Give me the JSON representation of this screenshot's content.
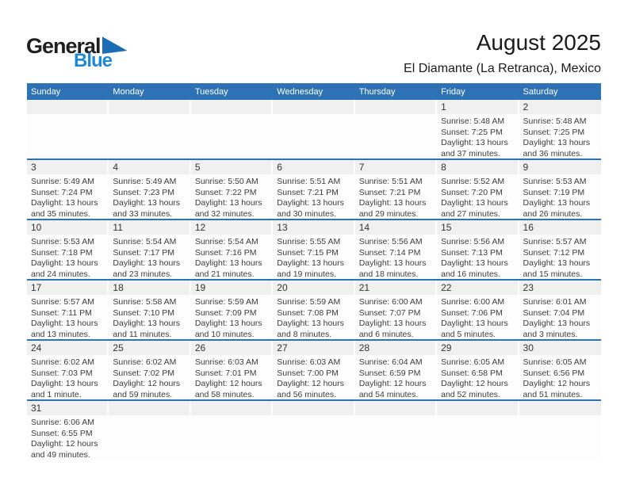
{
  "logo": {
    "line1": "General",
    "line2": "Blue"
  },
  "header": {
    "title": "August 2025",
    "subtitle": "El Diamante (La Retranca), Mexico"
  },
  "colors": {
    "header_bg": "#2d72b4",
    "row_divider": "#2e74b5",
    "day_strip_bg": "#f0f0f0",
    "logo_blue": "#1e8ad6",
    "logo_triangle": "#1b6db5"
  },
  "weekdays": [
    "Sunday",
    "Monday",
    "Tuesday",
    "Wednesday",
    "Thursday",
    "Friday",
    "Saturday"
  ],
  "weeks": [
    [
      null,
      null,
      null,
      null,
      null,
      {
        "day": "1",
        "sunrise": "Sunrise: 5:48 AM",
        "sunset": "Sunset: 7:25 PM",
        "daylight": "Daylight: 13 hours and 37 minutes."
      },
      {
        "day": "2",
        "sunrise": "Sunrise: 5:48 AM",
        "sunset": "Sunset: 7:25 PM",
        "daylight": "Daylight: 13 hours and 36 minutes."
      }
    ],
    [
      {
        "day": "3",
        "sunrise": "Sunrise: 5:49 AM",
        "sunset": "Sunset: 7:24 PM",
        "daylight": "Daylight: 13 hours and 35 minutes."
      },
      {
        "day": "4",
        "sunrise": "Sunrise: 5:49 AM",
        "sunset": "Sunset: 7:23 PM",
        "daylight": "Daylight: 13 hours and 33 minutes."
      },
      {
        "day": "5",
        "sunrise": "Sunrise: 5:50 AM",
        "sunset": "Sunset: 7:22 PM",
        "daylight": "Daylight: 13 hours and 32 minutes."
      },
      {
        "day": "6",
        "sunrise": "Sunrise: 5:51 AM",
        "sunset": "Sunset: 7:21 PM",
        "daylight": "Daylight: 13 hours and 30 minutes."
      },
      {
        "day": "7",
        "sunrise": "Sunrise: 5:51 AM",
        "sunset": "Sunset: 7:21 PM",
        "daylight": "Daylight: 13 hours and 29 minutes."
      },
      {
        "day": "8",
        "sunrise": "Sunrise: 5:52 AM",
        "sunset": "Sunset: 7:20 PM",
        "daylight": "Daylight: 13 hours and 27 minutes."
      },
      {
        "day": "9",
        "sunrise": "Sunrise: 5:53 AM",
        "sunset": "Sunset: 7:19 PM",
        "daylight": "Daylight: 13 hours and 26 minutes."
      }
    ],
    [
      {
        "day": "10",
        "sunrise": "Sunrise: 5:53 AM",
        "sunset": "Sunset: 7:18 PM",
        "daylight": "Daylight: 13 hours and 24 minutes."
      },
      {
        "day": "11",
        "sunrise": "Sunrise: 5:54 AM",
        "sunset": "Sunset: 7:17 PM",
        "daylight": "Daylight: 13 hours and 23 minutes."
      },
      {
        "day": "12",
        "sunrise": "Sunrise: 5:54 AM",
        "sunset": "Sunset: 7:16 PM",
        "daylight": "Daylight: 13 hours and 21 minutes."
      },
      {
        "day": "13",
        "sunrise": "Sunrise: 5:55 AM",
        "sunset": "Sunset: 7:15 PM",
        "daylight": "Daylight: 13 hours and 19 minutes."
      },
      {
        "day": "14",
        "sunrise": "Sunrise: 5:56 AM",
        "sunset": "Sunset: 7:14 PM",
        "daylight": "Daylight: 13 hours and 18 minutes."
      },
      {
        "day": "15",
        "sunrise": "Sunrise: 5:56 AM",
        "sunset": "Sunset: 7:13 PM",
        "daylight": "Daylight: 13 hours and 16 minutes."
      },
      {
        "day": "16",
        "sunrise": "Sunrise: 5:57 AM",
        "sunset": "Sunset: 7:12 PM",
        "daylight": "Daylight: 13 hours and 15 minutes."
      }
    ],
    [
      {
        "day": "17",
        "sunrise": "Sunrise: 5:57 AM",
        "sunset": "Sunset: 7:11 PM",
        "daylight": "Daylight: 13 hours and 13 minutes."
      },
      {
        "day": "18",
        "sunrise": "Sunrise: 5:58 AM",
        "sunset": "Sunset: 7:10 PM",
        "daylight": "Daylight: 13 hours and 11 minutes."
      },
      {
        "day": "19",
        "sunrise": "Sunrise: 5:59 AM",
        "sunset": "Sunset: 7:09 PM",
        "daylight": "Daylight: 13 hours and 10 minutes."
      },
      {
        "day": "20",
        "sunrise": "Sunrise: 5:59 AM",
        "sunset": "Sunset: 7:08 PM",
        "daylight": "Daylight: 13 hours and 8 minutes."
      },
      {
        "day": "21",
        "sunrise": "Sunrise: 6:00 AM",
        "sunset": "Sunset: 7:07 PM",
        "daylight": "Daylight: 13 hours and 6 minutes."
      },
      {
        "day": "22",
        "sunrise": "Sunrise: 6:00 AM",
        "sunset": "Sunset: 7:06 PM",
        "daylight": "Daylight: 13 hours and 5 minutes."
      },
      {
        "day": "23",
        "sunrise": "Sunrise: 6:01 AM",
        "sunset": "Sunset: 7:04 PM",
        "daylight": "Daylight: 13 hours and 3 minutes."
      }
    ],
    [
      {
        "day": "24",
        "sunrise": "Sunrise: 6:02 AM",
        "sunset": "Sunset: 7:03 PM",
        "daylight": "Daylight: 13 hours and 1 minute."
      },
      {
        "day": "25",
        "sunrise": "Sunrise: 6:02 AM",
        "sunset": "Sunset: 7:02 PM",
        "daylight": "Daylight: 12 hours and 59 minutes."
      },
      {
        "day": "26",
        "sunrise": "Sunrise: 6:03 AM",
        "sunset": "Sunset: 7:01 PM",
        "daylight": "Daylight: 12 hours and 58 minutes."
      },
      {
        "day": "27",
        "sunrise": "Sunrise: 6:03 AM",
        "sunset": "Sunset: 7:00 PM",
        "daylight": "Daylight: 12 hours and 56 minutes."
      },
      {
        "day": "28",
        "sunrise": "Sunrise: 6:04 AM",
        "sunset": "Sunset: 6:59 PM",
        "daylight": "Daylight: 12 hours and 54 minutes."
      },
      {
        "day": "29",
        "sunrise": "Sunrise: 6:05 AM",
        "sunset": "Sunset: 6:58 PM",
        "daylight": "Daylight: 12 hours and 52 minutes."
      },
      {
        "day": "30",
        "sunrise": "Sunrise: 6:05 AM",
        "sunset": "Sunset: 6:56 PM",
        "daylight": "Daylight: 12 hours and 51 minutes."
      }
    ],
    [
      {
        "day": "31",
        "sunrise": "Sunrise: 6:06 AM",
        "sunset": "Sunset: 6:55 PM",
        "daylight": "Daylight: 12 hours and 49 minutes."
      },
      null,
      null,
      null,
      null,
      null,
      null
    ]
  ]
}
